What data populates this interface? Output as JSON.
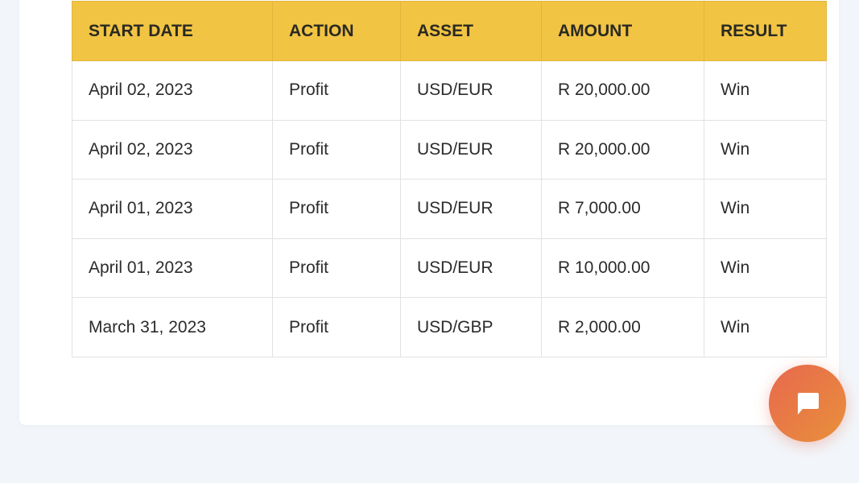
{
  "table": {
    "headers": [
      "START DATE",
      "ACTION",
      "ASSET",
      "AMOUNT",
      "RESULT"
    ],
    "rows": [
      [
        "April 02, 2023",
        "Profit",
        "USD/EUR",
        "R 20,000.00",
        "Win"
      ],
      [
        "April 02, 2023",
        "Profit",
        "USD/EUR",
        "R 20,000.00",
        "Win"
      ],
      [
        "April 01, 2023",
        "Profit",
        "USD/EUR",
        "R 7,000.00",
        "Win"
      ],
      [
        "April 01, 2023",
        "Profit",
        "USD/EUR",
        "R 10,000.00",
        "Win"
      ],
      [
        "March 31, 2023",
        "Profit",
        "USD/GBP",
        "R 2,000.00",
        "Win"
      ]
    ]
  },
  "chat_button": {
    "icon": "chat-bubble-icon",
    "colors": [
      "#e8684e",
      "#e8903b"
    ]
  },
  "colors": {
    "header": "#f2c443",
    "background": "#f2f6fa"
  }
}
